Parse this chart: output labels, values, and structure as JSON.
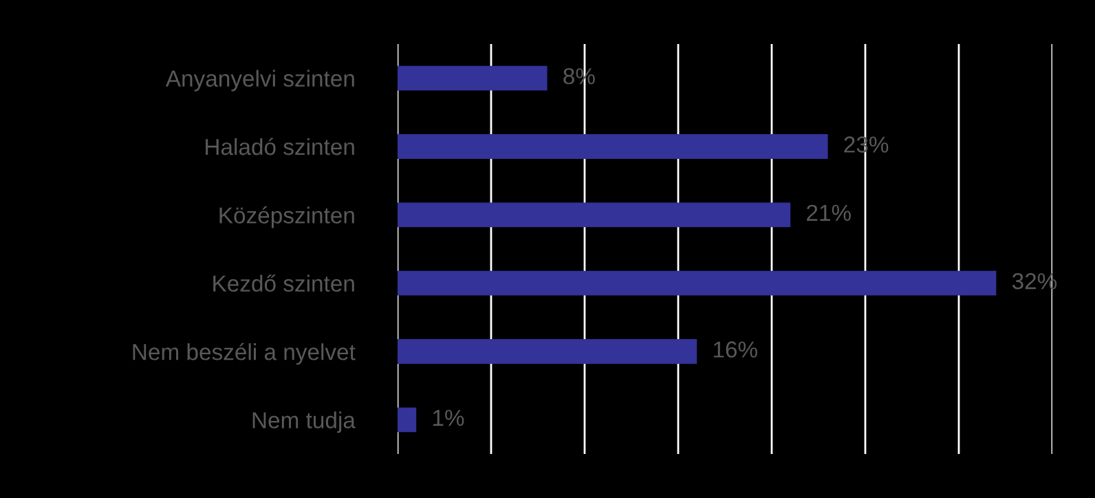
{
  "chart_data": {
    "type": "bar",
    "orientation": "horizontal",
    "categories": [
      "Anyanyelvi szinten",
      "Haladó szinten",
      "Középszinten",
      "Kezdő szinten",
      "Nem beszéli a nyelvet",
      "Nem tudja"
    ],
    "values": [
      8,
      23,
      21,
      32,
      16,
      1
    ],
    "value_labels": [
      "8%",
      "23%",
      "21%",
      "32%",
      "16%",
      "1%"
    ],
    "color": "#333399",
    "xlim": [
      0,
      35
    ],
    "xticks": [
      {
        "value": 0,
        "label": null
      },
      {
        "value": 5,
        "label": null
      },
      {
        "value": 10,
        "label": null
      },
      {
        "value": 15,
        "label": null
      },
      {
        "value": 20,
        "label": null
      },
      {
        "value": 25,
        "label": null
      },
      {
        "value": 30,
        "label": null
      },
      {
        "value": 35,
        "label": null
      }
    ],
    "grid": "x",
    "legend": false
  }
}
